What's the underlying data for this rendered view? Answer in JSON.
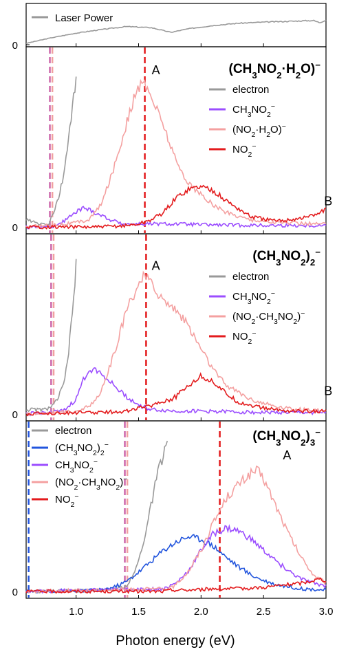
{
  "figure": {
    "xlabel": "Photon energy (eV)",
    "xlim": [
      0.6,
      3.0
    ],
    "xticks": [
      "1.0",
      "1.5",
      "2.0",
      "2.5",
      "3.0"
    ]
  },
  "chart_data": [
    {
      "type": "line",
      "panel": "laser",
      "title": "",
      "series": [
        {
          "name": "Laser Power",
          "color": "#999999",
          "x": [
            0.6,
            0.8,
            1.0,
            1.2,
            1.4,
            1.6,
            1.73,
            1.76,
            1.9,
            2.1,
            2.3,
            2.5,
            2.7,
            2.9,
            2.95,
            3.0
          ],
          "y": [
            0.05,
            0.25,
            0.42,
            0.55,
            0.66,
            0.62,
            0.48,
            0.45,
            0.58,
            0.7,
            0.78,
            0.82,
            0.85,
            0.88,
            0.8,
            0.9
          ]
        }
      ],
      "ylim": [
        0,
        1.3
      ],
      "yticks": [
        "0"
      ]
    },
    {
      "type": "line",
      "panel": "hydrate",
      "title": "(CH3NO2·H2O)⁻",
      "legend": "top-right",
      "annotations": [
        {
          "text": "A",
          "x": 1.55,
          "y": 1.04
        },
        {
          "text": "B",
          "x": 2.93,
          "y": 0.14
        }
      ],
      "vlines": [
        {
          "x": 0.79,
          "color": "#cc66aa",
          "dash": true
        },
        {
          "x": 0.81,
          "color": "#f0a0a0",
          "dash": true
        },
        {
          "x": 1.55,
          "color": "#e31a1c",
          "dash": true
        }
      ],
      "series": [
        {
          "name": "electron",
          "color": "#999999",
          "x": [
            0.6,
            0.7,
            0.78,
            0.82,
            0.86,
            0.9,
            0.93,
            0.96,
            0.99,
            1.0
          ],
          "y": [
            0.05,
            0.02,
            0.02,
            0.1,
            0.2,
            0.35,
            0.55,
            0.75,
            0.95,
            1.05
          ]
        },
        {
          "name": "CH3NO2⁻",
          "color": "#9b4dff",
          "x": [
            0.6,
            0.8,
            0.9,
            1.0,
            1.05,
            1.1,
            1.2,
            1.3,
            1.4,
            1.6,
            1.8,
            2.0,
            2.5,
            3.0
          ],
          "y": [
            0.0,
            0.0,
            0.04,
            0.1,
            0.13,
            0.12,
            0.08,
            0.04,
            0.02,
            0.02,
            0.02,
            0.015,
            0.01,
            0.01
          ]
        },
        {
          "name": "(NO2·H2O)⁻",
          "color": "#f4a0a0",
          "x": [
            0.6,
            0.9,
            1.0,
            1.1,
            1.2,
            1.3,
            1.4,
            1.45,
            1.5,
            1.55,
            1.6,
            1.7,
            1.8,
            1.9,
            2.0,
            2.1,
            2.2,
            2.4,
            2.6,
            3.0
          ],
          "y": [
            0.0,
            0.02,
            0.03,
            0.05,
            0.15,
            0.4,
            0.7,
            0.85,
            0.96,
            0.98,
            0.9,
            0.7,
            0.45,
            0.3,
            0.22,
            0.15,
            0.1,
            0.05,
            0.03,
            0.02
          ]
        },
        {
          "name": "NO2⁻",
          "color": "#e31a1c",
          "x": [
            0.6,
            1.2,
            1.4,
            1.5,
            1.6,
            1.7,
            1.8,
            1.9,
            2.0,
            2.1,
            2.2,
            2.4,
            2.6,
            2.8,
            2.9,
            3.0
          ],
          "y": [
            0.0,
            0.0,
            0.01,
            0.02,
            0.05,
            0.1,
            0.2,
            0.26,
            0.28,
            0.25,
            0.18,
            0.07,
            0.04,
            0.06,
            0.08,
            0.12
          ]
        }
      ],
      "ylim": [
        0,
        1.2
      ],
      "yticks": [
        "0"
      ]
    },
    {
      "type": "line",
      "panel": "dimer",
      "title": "(CH3NO2)2⁻",
      "legend": "top-right",
      "annotations": [
        {
          "text": "A",
          "x": 1.55,
          "y": 0.98
        },
        {
          "text": "B",
          "x": 2.93,
          "y": 0.12
        }
      ],
      "vlines": [
        {
          "x": 0.8,
          "color": "#cc66aa",
          "dash": true
        },
        {
          "x": 0.82,
          "color": "#f0a0a0",
          "dash": true
        },
        {
          "x": 1.56,
          "color": "#e31a1c",
          "dash": true
        }
      ],
      "series": [
        {
          "name": "electron",
          "color": "#999999",
          "x": [
            0.6,
            0.75,
            0.82,
            0.86,
            0.9,
            0.93,
            0.96,
            0.99,
            1.0
          ],
          "y": [
            0.03,
            0.03,
            0.06,
            0.12,
            0.2,
            0.35,
            0.6,
            0.9,
            1.05
          ]
        },
        {
          "name": "CH3NO2⁻",
          "color": "#9b4dff",
          "x": [
            0.6,
            0.9,
            1.0,
            1.05,
            1.1,
            1.15,
            1.2,
            1.3,
            1.4,
            1.5,
            1.6,
            1.8,
            2.0,
            2.5,
            3.0
          ],
          "y": [
            0.0,
            0.02,
            0.1,
            0.22,
            0.3,
            0.31,
            0.28,
            0.2,
            0.12,
            0.06,
            0.03,
            0.02,
            0.02,
            0.01,
            0.01
          ]
        },
        {
          "name": "(NO2·CH3NO2)⁻",
          "color": "#f4a0a0",
          "x": [
            0.6,
            1.0,
            1.1,
            1.2,
            1.3,
            1.4,
            1.5,
            1.55,
            1.6,
            1.7,
            1.8,
            1.9,
            2.0,
            2.1,
            2.2,
            2.4,
            2.6,
            2.8,
            3.0
          ],
          "y": [
            0.0,
            0.02,
            0.05,
            0.15,
            0.4,
            0.7,
            0.9,
            0.95,
            0.9,
            0.78,
            0.72,
            0.6,
            0.45,
            0.3,
            0.2,
            0.1,
            0.05,
            0.03,
            0.02
          ]
        },
        {
          "name": "NO2⁻",
          "color": "#e31a1c",
          "x": [
            0.6,
            1.0,
            1.2,
            1.4,
            1.5,
            1.6,
            1.7,
            1.75,
            1.8,
            1.9,
            2.0,
            2.1,
            2.2,
            2.3,
            2.5,
            2.7,
            2.9,
            3.0
          ],
          "y": [
            0.0,
            0.01,
            0.01,
            0.02,
            0.04,
            0.06,
            0.09,
            0.1,
            0.12,
            0.2,
            0.26,
            0.22,
            0.14,
            0.08,
            0.04,
            0.02,
            0.02,
            0.02
          ]
        }
      ],
      "ylim": [
        0,
        1.2
      ],
      "yticks": [
        "0"
      ]
    },
    {
      "type": "line",
      "panel": "trimer",
      "title": "(CH3NO2)3⁻",
      "legend": "top-left",
      "annotations": [
        {
          "text": "A",
          "x": 2.6,
          "y": 0.95
        }
      ],
      "vlines": [
        {
          "x": 0.62,
          "color": "#2255dd",
          "dash": true
        },
        {
          "x": 1.39,
          "color": "#cc66aa",
          "dash": true
        },
        {
          "x": 1.41,
          "color": "#f0a0a0",
          "dash": true
        },
        {
          "x": 2.15,
          "color": "#e31a1c",
          "dash": true
        }
      ],
      "series": [
        {
          "name": "electron",
          "color": "#999999",
          "x": [
            0.6,
            1.3,
            1.4,
            1.45,
            1.5,
            1.55,
            1.6,
            1.65,
            1.7,
            1.73
          ],
          "y": [
            0.0,
            0.01,
            0.04,
            0.1,
            0.22,
            0.4,
            0.62,
            0.85,
            1.0,
            1.1
          ]
        },
        {
          "name": "(CH3NO2)2⁻",
          "color": "#2255dd",
          "x": [
            0.6,
            1.2,
            1.3,
            1.4,
            1.5,
            1.6,
            1.7,
            1.8,
            1.9,
            2.0,
            2.1,
            2.2,
            2.3,
            2.4,
            2.5,
            2.6,
            2.8,
            3.0
          ],
          "y": [
            0.0,
            0.01,
            0.03,
            0.07,
            0.14,
            0.22,
            0.3,
            0.36,
            0.4,
            0.38,
            0.33,
            0.25,
            0.18,
            0.12,
            0.08,
            0.05,
            0.02,
            0.01
          ]
        },
        {
          "name": "CH3NO2⁻",
          "color": "#9b4dff",
          "x": [
            0.6,
            1.7,
            1.8,
            1.9,
            2.0,
            2.1,
            2.2,
            2.3,
            2.4,
            2.5,
            2.6,
            2.7,
            2.8,
            2.9,
            3.0
          ],
          "y": [
            0.0,
            0.02,
            0.06,
            0.15,
            0.3,
            0.42,
            0.46,
            0.44,
            0.38,
            0.3,
            0.22,
            0.15,
            0.09,
            0.06,
            0.04
          ]
        },
        {
          "name": "(NO2·CH3NO2)⁻",
          "color": "#f4a0a0",
          "x": [
            0.6,
            1.75,
            1.8,
            1.9,
            2.0,
            2.1,
            2.2,
            2.3,
            2.4,
            2.45,
            2.5,
            2.6,
            2.7,
            2.8,
            2.9,
            3.0
          ],
          "y": [
            0.0,
            0.02,
            0.05,
            0.15,
            0.3,
            0.5,
            0.68,
            0.78,
            0.86,
            0.88,
            0.82,
            0.62,
            0.42,
            0.25,
            0.12,
            0.06
          ]
        },
        {
          "name": "NO2⁻",
          "color": "#e31a1c",
          "x": [
            0.6,
            1.7,
            1.75,
            1.9,
            2.1,
            2.3,
            2.5,
            2.7,
            2.8,
            2.9,
            2.95,
            3.0
          ],
          "y": [
            0.0,
            0.0,
            0.01,
            0.01,
            0.02,
            0.02,
            0.03,
            0.05,
            0.06,
            0.08,
            0.09,
            0.08
          ]
        }
      ],
      "ylim": [
        0,
        1.2
      ],
      "yticks": [
        "0"
      ]
    }
  ]
}
